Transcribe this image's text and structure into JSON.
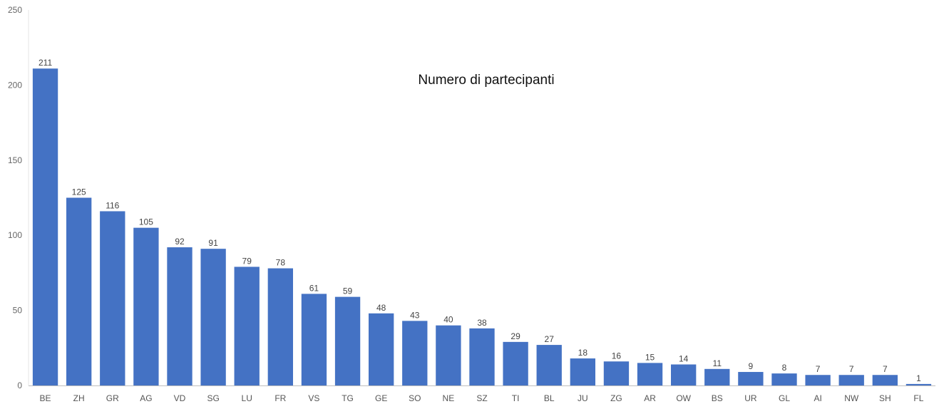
{
  "chart_data": {
    "type": "bar",
    "title": "Numero di partecipanti",
    "xlabel": "",
    "ylabel": "",
    "ylim": [
      0,
      250
    ],
    "yticks": [
      0,
      50,
      100,
      150,
      200,
      250
    ],
    "grid": false,
    "legend": "none",
    "bar_color": "#4472C4",
    "categories": [
      "BE",
      "ZH",
      "GR",
      "AG",
      "VD",
      "SG",
      "LU",
      "FR",
      "VS",
      "TG",
      "GE",
      "SO",
      "NE",
      "SZ",
      "TI",
      "BL",
      "JU",
      "ZG",
      "AR",
      "OW",
      "BS",
      "UR",
      "GL",
      "AI",
      "NW",
      "SH",
      "FL"
    ],
    "values": [
      211,
      125,
      116,
      105,
      92,
      91,
      79,
      78,
      61,
      59,
      48,
      43,
      40,
      38,
      29,
      27,
      18,
      16,
      15,
      14,
      11,
      9,
      8,
      7,
      7,
      7,
      1
    ]
  }
}
